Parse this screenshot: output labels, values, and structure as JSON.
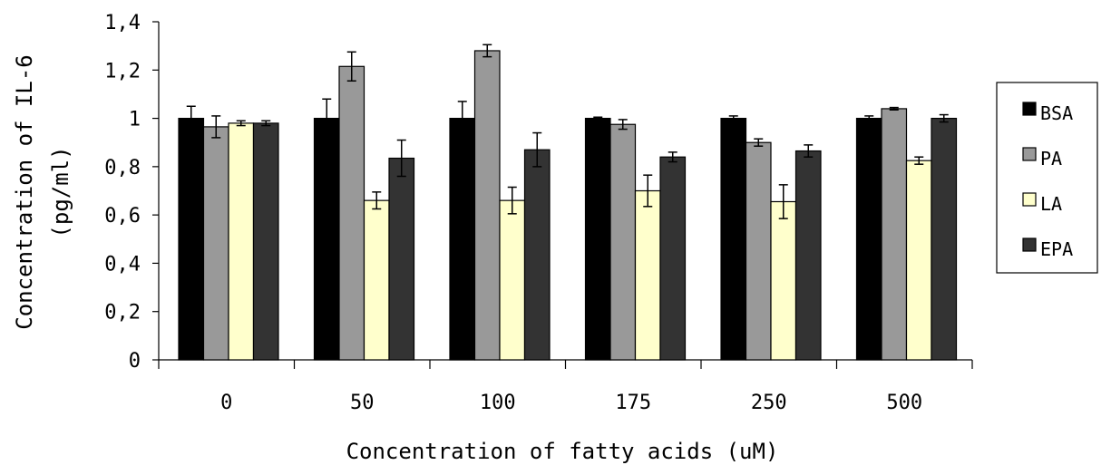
{
  "chart_data": {
    "type": "bar",
    "categories": [
      "0",
      "50",
      "100",
      "175",
      "250",
      "500"
    ],
    "series": [
      {
        "name": "BSA",
        "color": "#000000",
        "values": [
          1.0,
          1.0,
          1.0,
          1.0,
          1.0,
          1.0
        ],
        "errors": [
          0.05,
          0.08,
          0.07,
          0.005,
          0.01,
          0.01
        ]
      },
      {
        "name": "PA",
        "color": "#999999",
        "values": [
          0.965,
          1.215,
          1.28,
          0.975,
          0.9,
          1.04
        ],
        "errors": [
          0.045,
          0.06,
          0.025,
          0.02,
          0.015,
          0.005
        ]
      },
      {
        "name": "LA",
        "color": "#ffffcc",
        "values": [
          0.98,
          0.66,
          0.66,
          0.7,
          0.655,
          0.825
        ],
        "errors": [
          0.01,
          0.035,
          0.055,
          0.065,
          0.07,
          0.015
        ]
      },
      {
        "name": "EPA",
        "color": "#333333",
        "values": [
          0.98,
          0.835,
          0.87,
          0.84,
          0.865,
          1.0
        ],
        "errors": [
          0.01,
          0.075,
          0.07,
          0.02,
          0.025,
          0.015
        ]
      }
    ],
    "xlabel": "Concentration of fatty acids (uM)",
    "ylabel_lines": [
      "Concentration of IL-6",
      "(pg/ml)"
    ],
    "yticks": [
      "0",
      "0,2",
      "0,4",
      "0,6",
      "0,8",
      "1",
      "1,2",
      "1,4"
    ],
    "ylim": [
      0,
      1.4
    ],
    "grid": false,
    "legend_position": "right"
  }
}
